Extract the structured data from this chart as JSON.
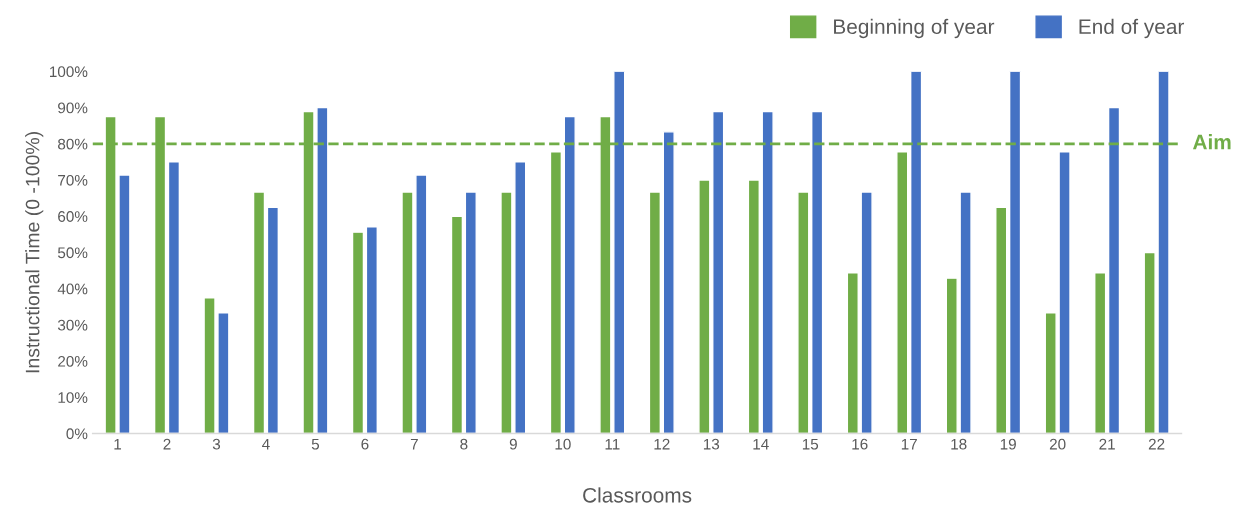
{
  "chart_data": {
    "type": "bar",
    "xlabel": "Classrooms",
    "ylabel": "Instructional Time (0 -100%)",
    "categories": [
      "1",
      "2",
      "3",
      "4",
      "5",
      "6",
      "7",
      "8",
      "9",
      "10",
      "11",
      "12",
      "13",
      "14",
      "15",
      "16",
      "17",
      "18",
      "19",
      "20",
      "21",
      "22"
    ],
    "series": [
      {
        "name": "Beginning of year",
        "color": "#70ad47",
        "values": [
          87.5,
          87.5,
          37.5,
          66.7,
          88.9,
          55.6,
          66.7,
          60,
          66.7,
          77.8,
          87.5,
          66.7,
          70,
          70,
          66.7,
          44.4,
          77.8,
          42.9,
          62.5,
          33.3,
          44.4,
          50
        ]
      },
      {
        "name": "End of year",
        "color": "#4472c4",
        "values": [
          71.4,
          75,
          33.3,
          62.5,
          90,
          57.1,
          71.4,
          66.7,
          75,
          87.5,
          100,
          83.3,
          88.9,
          88.9,
          88.9,
          66.7,
          100,
          66.7,
          100,
          77.8,
          90,
          100
        ]
      }
    ],
    "ylim": [
      0,
      100
    ],
    "yticks": [
      {
        "value": 0,
        "label": "0%"
      },
      {
        "value": 10,
        "label": "10%"
      },
      {
        "value": 20,
        "label": "20%"
      },
      {
        "value": 30,
        "label": "30%"
      },
      {
        "value": 40,
        "label": "40%"
      },
      {
        "value": 50,
        "label": "50%"
      },
      {
        "value": 60,
        "label": "60%"
      },
      {
        "value": 70,
        "label": "70%"
      },
      {
        "value": 80,
        "label": "80%"
      },
      {
        "value": 90,
        "label": "90%"
      },
      {
        "value": 100,
        "label": "100%"
      }
    ],
    "ref_lines": [
      {
        "axis": "y",
        "value": 80,
        "label": "Aim",
        "color": "#70ad47",
        "line_style": "dashed"
      }
    ],
    "legend": "top right",
    "grid": false
  }
}
